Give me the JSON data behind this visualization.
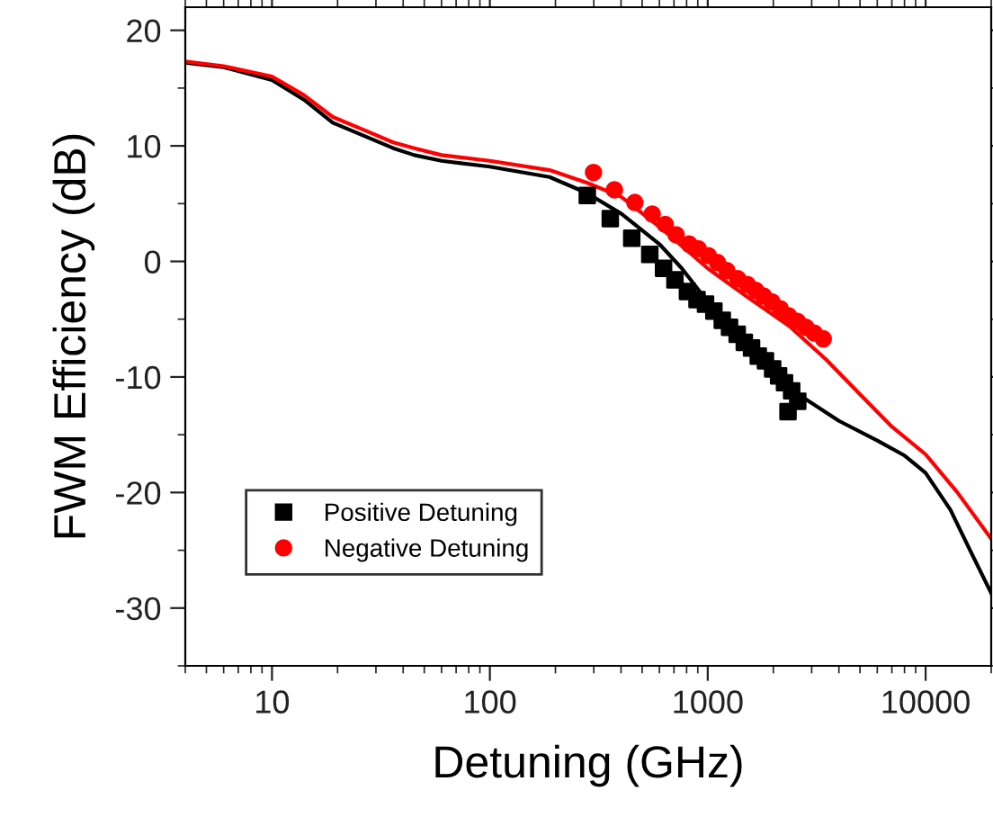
{
  "chart_data": {
    "type": "scatter",
    "xlabel": "Detuning (GHz)",
    "ylabel": "FWM Efficiency (dB)",
    "log": "x",
    "xlim": [
      4,
      20000
    ],
    "xticks": [
      10,
      100,
      1000,
      10000
    ],
    "ylim": [
      -35,
      22
    ],
    "yticks": [
      -30,
      -20,
      -10,
      0,
      10,
      20
    ],
    "grid": false,
    "legend": "bottom left",
    "series": [
      {
        "name": "Positive Detuning",
        "marker": "square",
        "color": "#000000",
        "x": [
          280,
          357,
          448,
          542,
          627,
          707,
          807,
          893,
          977,
          1067,
          1166,
          1259,
          1365,
          1472,
          1589,
          1706,
          1840,
          1986,
          2115,
          2251,
          2428,
          2589,
          2336
        ],
        "values": [
          5.7,
          3.7,
          2.0,
          0.6,
          -0.6,
          -1.6,
          -2.6,
          -3.3,
          -3.7,
          -4.3,
          -5.1,
          -5.7,
          -6.3,
          -7.0,
          -7.5,
          -8.2,
          -8.6,
          -9.3,
          -9.9,
          -10.5,
          -11.2,
          -12.1,
          -13.0
        ]
      },
      {
        "name": "Negative Detuning",
        "marker": "circle",
        "color": "#ff0000",
        "x": [
          299,
          373,
          463,
          556,
          638,
          716,
          822,
          904,
          1007,
          1109,
          1225,
          1374,
          1520,
          1660,
          1805,
          1968,
          2153,
          2350,
          2584,
          2818,
          3083,
          3390
        ],
        "values": [
          7.7,
          6.2,
          5.1,
          4.1,
          3.2,
          2.3,
          1.5,
          1.1,
          0.5,
          -0.1,
          -0.8,
          -1.5,
          -2.0,
          -2.5,
          -3.0,
          -3.5,
          -4.1,
          -4.7,
          -5.2,
          -5.7,
          -6.2,
          -6.7
        ]
      },
      {
        "type": "line",
        "marker": "none",
        "line_style": "solid",
        "color": "#000000",
        "x": [
          4,
          6,
          10,
          14,
          19,
          27,
          36,
          45,
          60,
          100,
          188,
          280,
          403,
          600,
          760,
          1000,
          1429,
          2000,
          2700,
          4000,
          6000,
          8000,
          10000,
          13000,
          16000,
          20000
        ],
        "values": [
          17.2,
          16.8,
          15.7,
          14.0,
          12.0,
          10.8,
          9.8,
          9.2,
          8.7,
          8.2,
          7.3,
          5.9,
          4.1,
          1.5,
          -0.6,
          -3.5,
          -7.0,
          -9.8,
          -11.7,
          -13.8,
          -15.5,
          -16.8,
          -18.3,
          -21.5,
          -25.0,
          -28.7
        ]
      },
      {
        "type": "line",
        "marker": "none",
        "line_style": "solid",
        "color": "#ff0000",
        "x": [
          4,
          6,
          10,
          14,
          19,
          27,
          36,
          45,
          60,
          100,
          188,
          280,
          400,
          600,
          1000,
          1500,
          2370,
          3500,
          5000,
          7000,
          10000,
          14000,
          20000
        ],
        "values": [
          17.3,
          16.9,
          16.0,
          14.4,
          12.5,
          11.3,
          10.3,
          9.8,
          9.2,
          8.7,
          7.9,
          6.8,
          5.6,
          3.0,
          -0.6,
          -3.0,
          -5.6,
          -8.5,
          -11.5,
          -14.3,
          -16.7,
          -20.0,
          -24.0
        ]
      }
    ]
  }
}
